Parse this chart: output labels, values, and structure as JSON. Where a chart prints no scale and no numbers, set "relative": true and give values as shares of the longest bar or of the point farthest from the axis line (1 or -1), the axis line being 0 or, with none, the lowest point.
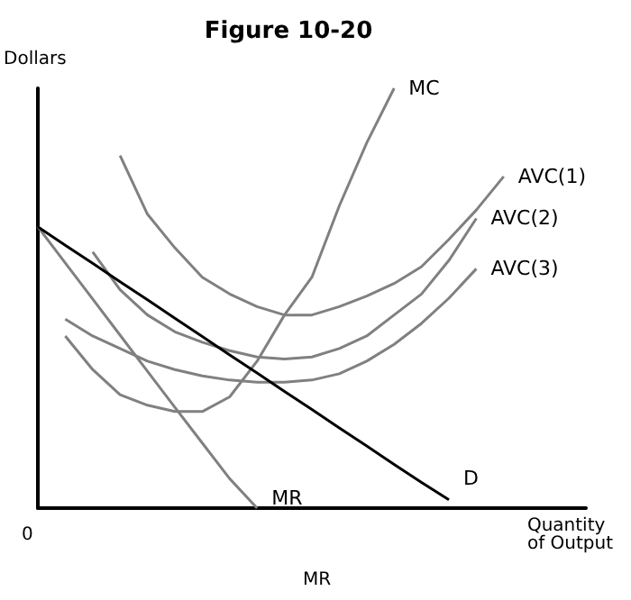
{
  "chart_data": {
    "type": "line",
    "title": "Figure 10-20",
    "xlabel": "Quantity\nof Output",
    "ylabel": "Dollars",
    "annotations": [
      "0",
      "MR"
    ],
    "relative": true,
    "grid": false,
    "legend": false,
    "marker": "none",
    "line_style": "solid",
    "categories": [
      null,
      null,
      null,
      null,
      null,
      null,
      null,
      null,
      null,
      null,
      null,
      null,
      null,
      null,
      null,
      null,
      null,
      null,
      null,
      null,
      null
    ],
    "series": [
      {
        "name": "MC",
        "color": "#808080",
        "values": [
          null,
          0.41,
          0.33,
          0.27,
          0.245,
          0.23,
          0.23,
          0.265,
          0.35,
          0.46,
          0.55,
          0.72,
          0.87,
          1,
          null,
          null,
          null,
          null,
          null,
          null,
          null
        ]
      },
      {
        "name": "AVC(1)",
        "color": "#808080",
        "values": [
          null,
          null,
          null,
          0.84,
          0.7,
          0.62,
          0.55,
          0.51,
          0.48,
          0.46,
          0.46,
          0.48,
          0.505,
          0.535,
          0.575,
          0.64,
          0.71,
          0.79,
          null,
          null,
          null
        ]
      },
      {
        "name": "AVC(2)",
        "color": "#808080",
        "values": [
          null,
          null,
          0.61,
          0.52,
          0.46,
          0.42,
          0.395,
          0.375,
          0.36,
          0.355,
          0.36,
          0.38,
          0.41,
          0.46,
          0.51,
          0.59,
          0.69,
          null,
          null,
          null,
          null
        ]
      },
      {
        "name": "AVC(3)",
        "color": "#808080",
        "values": [
          null,
          0.45,
          0.41,
          0.38,
          0.35,
          0.33,
          0.315,
          0.305,
          0.3,
          0.3,
          0.305,
          0.32,
          0.35,
          0.39,
          0.44,
          0.5,
          0.57,
          null,
          null,
          null,
          null
        ]
      },
      {
        "name": "MR",
        "color": "#808080",
        "values": [
          0.67,
          0.584,
          0.498,
          0.412,
          0.326,
          0.24,
          0.155,
          0.07,
          0,
          null,
          null,
          null,
          null,
          null,
          null,
          null,
          null,
          null,
          null,
          null,
          null
        ]
      },
      {
        "name": "D",
        "color": "#000000",
        "values": [
          0.67,
          0.626,
          0.583,
          0.539,
          0.496,
          0.452,
          0.409,
          0.365,
          0.322,
          0.278,
          0.235,
          0.191,
          0.148,
          0.104,
          0.061,
          0.02,
          null,
          null,
          null,
          null,
          null
        ]
      }
    ]
  }
}
